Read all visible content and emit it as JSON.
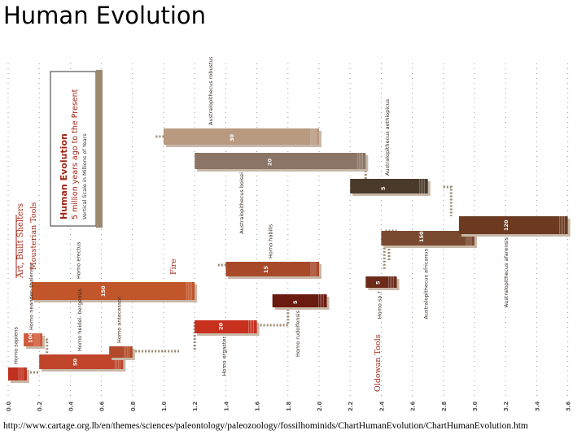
{
  "page_title": "Human Evolution",
  "source_url": "http://www.cartage.org.lb/en/themes/sciences/paleontology/paleozoology/fossilhominids/ChartHumanEvolution/ChartHumanEvolution.htm",
  "chart_data": {
    "type": "timeline",
    "title": "Human Evolution",
    "subtitle": "5 million years ago to the Present",
    "scale_note": "Vertical Scale in Millions of Years",
    "x_ticks": [
      "0.0",
      "0.2",
      "0.4",
      "0.6",
      "0.8",
      "1.0",
      "1.2",
      "1.4",
      "1.6",
      "1.8",
      "2.0",
      "2.2",
      "2.4",
      "2.6",
      "2.8",
      "3.0",
      "3.2",
      "3.4",
      "3.6"
    ],
    "colors": {
      "brown_dark": "#6b2a1a",
      "brown_mid": "#7a4a35",
      "rust": "#c0562a",
      "red": "#c8301e",
      "tan": "#b89a80",
      "taupe": "#8a7566",
      "olive_dark": "#4a3a2a",
      "connector": "#9a8870"
    },
    "species": [
      {
        "id": "homo-sapiens",
        "label": "Homo sapiens",
        "start": 0.0,
        "end": 0.12,
        "value": "",
        "color": "#c0301e",
        "label_side": "above"
      },
      {
        "id": "homo-neanderthalensis",
        "label": "Homo neander- thalensis",
        "start": 0.1,
        "end": 0.22,
        "value": "100",
        "color": "#d05a3a",
        "label_side": "above"
      },
      {
        "id": "homo-heidelbergensis",
        "label": "Homo heidel- bergensis",
        "start": 0.2,
        "end": 0.74,
        "value": "50",
        "color": "#c0452a",
        "label_side": "above"
      },
      {
        "id": "homo-antecessor",
        "label": "Homo antecessor",
        "start": 0.65,
        "end": 0.8,
        "value": "",
        "color": "#b04a2a",
        "label_side": "above"
      },
      {
        "id": "homo-erectus",
        "label": "Homo erectus",
        "start": 0.15,
        "end": 1.2,
        "value": "150",
        "color": "#c0562a",
        "label_side": "above"
      },
      {
        "id": "homo-ergaster",
        "label": "Homo ergaster",
        "start": 1.2,
        "end": 1.6,
        "value": "20",
        "color": "#c8301e",
        "label_side": "below"
      },
      {
        "id": "homo-habilis",
        "label": "Homo habilis",
        "start": 1.4,
        "end": 2.0,
        "value": "15",
        "color": "#a84a2a",
        "label_side": "above"
      },
      {
        "id": "homo-rudolfensis",
        "label": "Homo rudolfensis",
        "start": 1.7,
        "end": 2.05,
        "value": "5",
        "color": "#6b1a10",
        "label_side": "below"
      },
      {
        "id": "homo-sp",
        "label": "Homo sp.?",
        "start": 2.3,
        "end": 2.5,
        "value": "5",
        "color": "#6b2a1a",
        "label_side": "below"
      },
      {
        "id": "australopithecus-africanus",
        "label": "Australopithecus africanus",
        "start": 2.4,
        "end": 3.0,
        "value": "150",
        "color": "#7a4a30",
        "label_side": "below"
      },
      {
        "id": "australopithecus-afarensis",
        "label": "Australopithecus afarensis",
        "start": 2.9,
        "end": 3.6,
        "value": "120",
        "color": "#6b3a20",
        "label_side": "below"
      },
      {
        "id": "australopithecus-aethiopicus",
        "label": "Australopithecus aethiopicus",
        "start": 2.2,
        "end": 2.7,
        "value": "5",
        "color": "#4a3a2a",
        "label_side": "above"
      },
      {
        "id": "australopithecus-boisei",
        "label": "Australopithecus boisei",
        "start": 1.2,
        "end": 2.3,
        "value": "20",
        "color": "#8a7566",
        "label_side": "below"
      },
      {
        "id": "australopithecus-robustus",
        "label": "Australopithecus robustus",
        "start": 1.0,
        "end": 2.0,
        "value": "30",
        "color": "#b89a80",
        "label_side": "above"
      }
    ],
    "annotations": [
      {
        "id": "art-built-shelters",
        "text": "Art, Built Shelters",
        "x": 0.06
      },
      {
        "id": "mousterian-tools",
        "text": "Mousterian Tools",
        "x": 0.2
      },
      {
        "id": "fire",
        "text": "Fire",
        "x": 1.1
      },
      {
        "id": "oldowan-tools",
        "text": "Oldowan Tools",
        "x": 2.5
      }
    ]
  }
}
